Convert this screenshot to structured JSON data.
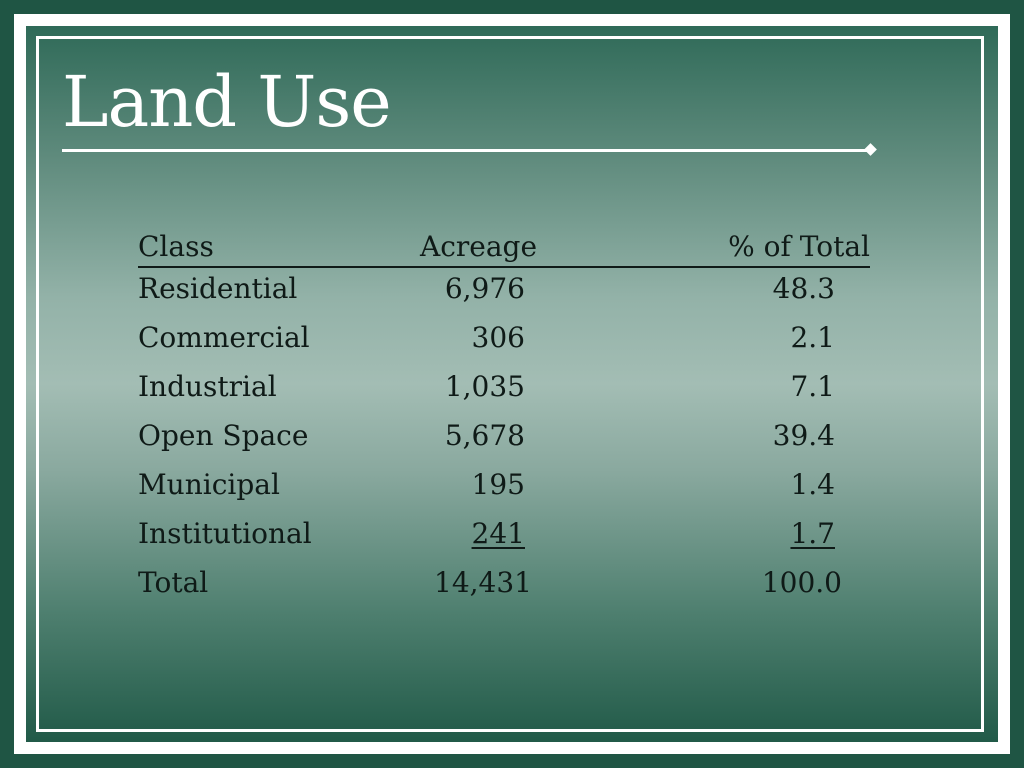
{
  "slide": {
    "title": "Land Use"
  },
  "table": {
    "headers": [
      "Class",
      "Acreage",
      "% of Total"
    ],
    "rows": [
      {
        "class": "Residential",
        "acreage": "6,976",
        "percent": "48.3"
      },
      {
        "class": "Commercial",
        "acreage": "306",
        "percent": "2.1"
      },
      {
        "class": "Industrial",
        "acreage": "1,035",
        "percent": "7.1"
      },
      {
        "class": "Open Space",
        "acreage": "5,678",
        "percent": "39.4"
      },
      {
        "class": "Municipal",
        "acreage": "195",
        "percent": "1.4"
      },
      {
        "class": "Institutional",
        "acreage": "241",
        "percent": "1.7"
      }
    ],
    "total": {
      "class": "Total",
      "acreage": "14,431",
      "percent": "100.0"
    }
  },
  "colors": {
    "background": "#1f5544",
    "frame": "#ffffff",
    "text": "#0f1a17",
    "title": "#ffffff"
  }
}
